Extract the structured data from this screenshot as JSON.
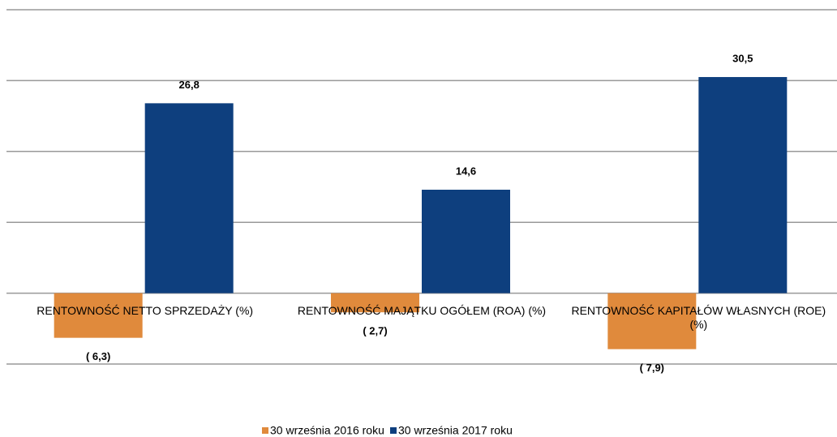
{
  "chart_data": {
    "type": "bar",
    "categories": [
      "RENTOWNOŚĆ NETTO SPRZEDAŻY (%)",
      "RENTOWNOŚĆ MAJĄTKU OGÓŁEM (ROA) (%)",
      "RENTOWNOŚĆ KAPITAŁÓW WŁASNYCH (ROE) (%)"
    ],
    "series": [
      {
        "name": "30 września 2016 roku",
        "color": "#e08a3c",
        "values": [
          -6.3,
          -2.7,
          -7.9
        ],
        "value_labels": [
          "( 6,3)",
          "( 2,7)",
          "( 7,9)"
        ]
      },
      {
        "name": "30 września 2017 roku",
        "color": "#0e3f7e",
        "values": [
          26.8,
          14.6,
          30.5
        ],
        "value_labels": [
          "26,8",
          "14,6",
          "30,5"
        ]
      }
    ],
    "ylim": [
      -10,
      40
    ],
    "yticks": [
      -10,
      0,
      10,
      20,
      30,
      40
    ],
    "grid": true,
    "legend": "bottom"
  }
}
